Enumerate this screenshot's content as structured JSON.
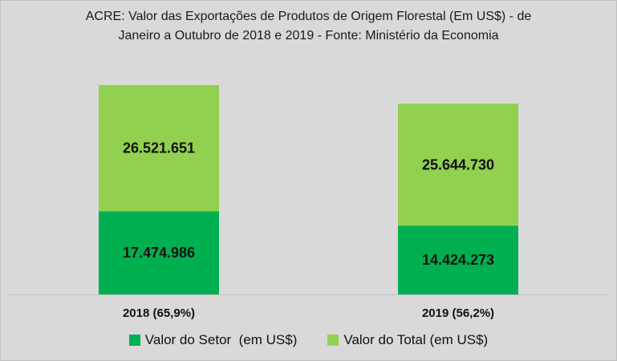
{
  "chart_data": {
    "type": "bar",
    "stacked": true,
    "title_lines": [
      "ACRE: Valor das Exportações de Produtos de Origem Florestal (Em US$) - de",
      "Janeiro a Outubro de 2018 e 2019 - Fonte: Ministério da Economia"
    ],
    "categories": [
      "2018 (65,9%)",
      "2019 (56,2%)"
    ],
    "series": [
      {
        "name": "Valor do Setor  (em US$)",
        "values": [
          17474986,
          14424273
        ],
        "labels": [
          "17.474.986",
          "14.424.273"
        ],
        "color": "#00b050"
      },
      {
        "name": "Valor do Total (em US$)",
        "values": [
          26521651,
          25644730
        ],
        "labels": [
          "26.521.651",
          "25.644.730"
        ],
        "color": "#92d050"
      }
    ],
    "legend_position": "bottom",
    "grid": false,
    "background": "#d9d9d9"
  }
}
